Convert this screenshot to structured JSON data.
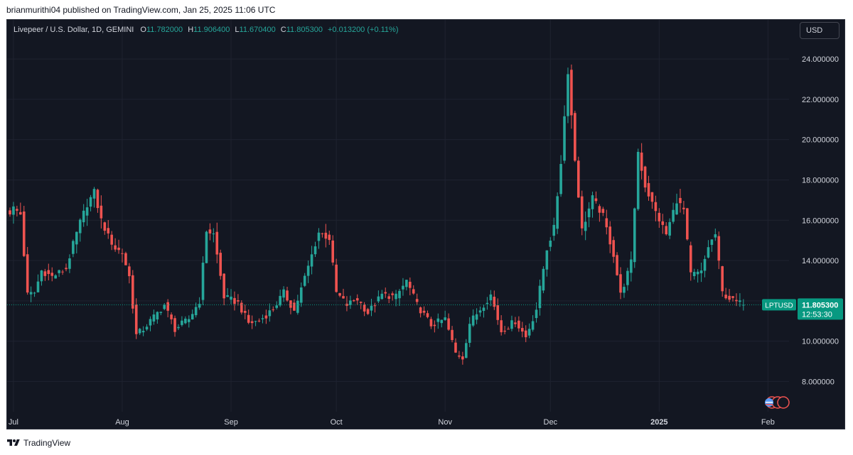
{
  "header": {
    "published_by": "brianmurithi04 published on TradingView.com, Jan 25, 2025 11:06 UTC"
  },
  "legend": {
    "symbol": "Livepeer / U.S. Dollar, 1D, GEMINI",
    "open_label": "O",
    "open": "11.782000",
    "high_label": "H",
    "high": "11.906400",
    "low_label": "L",
    "low": "11.670400",
    "close_label": "C",
    "close": "11.805300",
    "change": "+0.013200 (+0.11%)"
  },
  "currency": "USD",
  "footer": {
    "brand": "TradingView",
    "logo_icon": "tradingview-logo-icon"
  },
  "colors": {
    "up": "#26a69a",
    "down": "#ef5350",
    "background": "#131722",
    "grid": "#1f2330",
    "axis_text": "#d1d4dc",
    "price_tag": "#089981"
  },
  "chart_data": {
    "type": "candlestick",
    "symbol": "LPTUSD",
    "interval": "1D",
    "exchange": "GEMINI",
    "y_axis": {
      "ticks": [
        "8.000000",
        "10.000000",
        "12.000000",
        "14.000000",
        "16.000000",
        "18.000000",
        "20.000000",
        "22.000000",
        "24.000000"
      ],
      "ylim": [
        6.5,
        25.8
      ]
    },
    "x_axis": {
      "ticks": [
        {
          "date": "2024-07-01",
          "label": "Jul"
        },
        {
          "date": "2024-08-01",
          "label": "Aug"
        },
        {
          "date": "2024-09-01",
          "label": "Sep"
        },
        {
          "date": "2024-10-01",
          "label": "Oct"
        },
        {
          "date": "2024-11-01",
          "label": "Nov"
        },
        {
          "date": "2024-12-01",
          "label": "Dec"
        },
        {
          "date": "2025-01-01",
          "label": "2025"
        },
        {
          "date": "2025-02-01",
          "label": "Feb"
        }
      ],
      "xlim": [
        "2024-06-30",
        "2025-02-07"
      ]
    },
    "current_price": {
      "symbol_label": "LPTUSD",
      "price": "11.805300",
      "countdown": "12:53:30",
      "value": 11.8053
    },
    "close_anchors": [
      [
        "2024-06-30",
        16.4
      ],
      [
        "2024-07-01",
        16.6
      ],
      [
        "2024-07-03",
        16.3
      ],
      [
        "2024-07-05",
        12.3
      ],
      [
        "2024-07-07",
        12.4
      ],
      [
        "2024-07-09",
        13.5
      ],
      [
        "2024-07-12",
        13.2
      ],
      [
        "2024-07-16",
        13.6
      ],
      [
        "2024-07-18",
        14.8
      ],
      [
        "2024-07-20",
        15.9
      ],
      [
        "2024-07-22",
        16.8
      ],
      [
        "2024-07-24",
        17.4
      ],
      [
        "2024-07-26",
        16.0
      ],
      [
        "2024-07-28",
        15.2
      ],
      [
        "2024-07-30",
        14.6
      ],
      [
        "2024-08-01",
        14.4
      ],
      [
        "2024-08-03",
        13.2
      ],
      [
        "2024-08-05",
        10.3
      ],
      [
        "2024-08-07",
        10.6
      ],
      [
        "2024-08-10",
        11.2
      ],
      [
        "2024-08-13",
        11.8
      ],
      [
        "2024-08-16",
        10.6
      ],
      [
        "2024-08-20",
        11.1
      ],
      [
        "2024-08-23",
        12.0
      ],
      [
        "2024-08-25",
        15.5
      ],
      [
        "2024-08-27",
        15.3
      ],
      [
        "2024-08-30",
        12.2
      ],
      [
        "2024-09-03",
        11.9
      ],
      [
        "2024-09-06",
        10.9
      ],
      [
        "2024-09-09",
        11.0
      ],
      [
        "2024-09-13",
        11.6
      ],
      [
        "2024-09-16",
        12.4
      ],
      [
        "2024-09-19",
        11.5
      ],
      [
        "2024-09-23",
        13.7
      ],
      [
        "2024-09-26",
        15.4
      ],
      [
        "2024-09-29",
        15.1
      ],
      [
        "2024-10-01",
        12.4
      ],
      [
        "2024-10-04",
        11.8
      ],
      [
        "2024-10-07",
        12.1
      ],
      [
        "2024-10-10",
        11.4
      ],
      [
        "2024-10-14",
        12.3
      ],
      [
        "2024-10-18",
        12.2
      ],
      [
        "2024-10-21",
        13.0
      ],
      [
        "2024-10-24",
        11.8
      ],
      [
        "2024-10-28",
        10.8
      ],
      [
        "2024-11-01",
        11.1
      ],
      [
        "2024-11-04",
        9.4
      ],
      [
        "2024-11-06",
        9.2
      ],
      [
        "2024-11-08",
        10.9
      ],
      [
        "2024-11-11",
        11.6
      ],
      [
        "2024-11-14",
        12.3
      ],
      [
        "2024-11-17",
        10.5
      ],
      [
        "2024-11-21",
        11.0
      ],
      [
        "2024-11-24",
        10.2
      ],
      [
        "2024-11-27",
        11.6
      ],
      [
        "2024-11-30",
        14.6
      ],
      [
        "2024-12-02",
        15.6
      ],
      [
        "2024-12-04",
        18.9
      ],
      [
        "2024-12-06",
        23.4
      ],
      [
        "2024-12-08",
        19.0
      ],
      [
        "2024-12-10",
        15.5
      ],
      [
        "2024-12-13",
        17.1
      ],
      [
        "2024-12-16",
        16.2
      ],
      [
        "2024-12-19",
        14.3
      ],
      [
        "2024-12-21",
        12.3
      ],
      [
        "2024-12-24",
        13.9
      ],
      [
        "2024-12-26",
        19.4
      ],
      [
        "2024-12-28",
        17.7
      ],
      [
        "2024-12-31",
        16.4
      ],
      [
        "2025-01-03",
        15.3
      ],
      [
        "2025-01-06",
        17.0
      ],
      [
        "2025-01-08",
        16.5
      ],
      [
        "2025-01-10",
        13.3
      ],
      [
        "2025-01-13",
        13.4
      ],
      [
        "2025-01-15",
        14.7
      ],
      [
        "2025-01-17",
        15.3
      ],
      [
        "2025-01-19",
        12.4
      ],
      [
        "2025-01-22",
        12.0
      ],
      [
        "2025-01-25",
        11.81
      ]
    ]
  }
}
